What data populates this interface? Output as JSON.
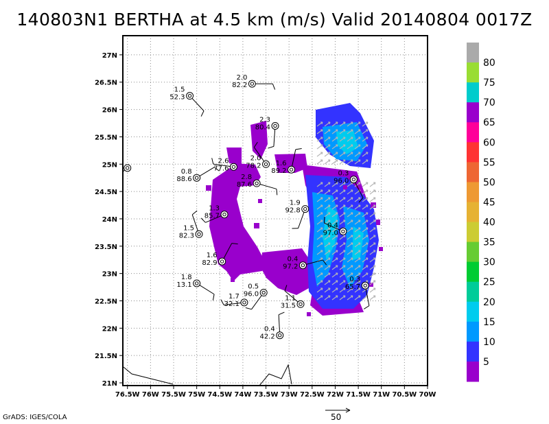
{
  "title": "140803N1 BERTHA at 4.5 km (m/s) Valid 20140804 0017Z",
  "credit": "GrADS: IGES/COLA",
  "vector_scale": {
    "label": "50",
    "value": 50
  },
  "colorbar": {
    "labels": [
      "5",
      "10",
      "15",
      "20",
      "25",
      "30",
      "35",
      "40",
      "45",
      "50",
      "55",
      "60",
      "65",
      "70",
      "75",
      "80"
    ],
    "colors": [
      "#9900cc",
      "#3333ff",
      "#0099ff",
      "#00ccee",
      "#00cc99",
      "#00cc33",
      "#66cc33",
      "#cccc33",
      "#e6b233",
      "#ee9933",
      "#ee6633",
      "#ff3333",
      "#ff0099",
      "#9900cc",
      "#00cccc",
      "#99dd33",
      "#aaaaaa"
    ]
  },
  "chart_data": {
    "type": "scatter",
    "title": "140803N1 BERTHA at 4.5 km (m/s) Valid 20140804 0017Z",
    "x_tick_labels": [
      "76.5W",
      "76W",
      "75.5W",
      "75W",
      "74.5W",
      "74W",
      "73.5W",
      "73W",
      "72.5W",
      "72W",
      "71.5W",
      "71W",
      "70.5W",
      "70W"
    ],
    "y_tick_labels": [
      "21N",
      "21.5N",
      "22N",
      "22.5N",
      "23N",
      "23.5N",
      "24N",
      "24.5N",
      "25N",
      "25.5N",
      "26N",
      "26.5N",
      "27N"
    ],
    "xlim": [
      -76.6,
      -70.0
    ],
    "ylim": [
      20.95,
      27.35
    ],
    "grid": true,
    "stations": [
      {
        "lon": -73.8,
        "lat": 26.47,
        "top": "2.0",
        "bottom": "82.2"
      },
      {
        "lon": -75.15,
        "lat": 26.25,
        "top": "1.5",
        "bottom": "52.3"
      },
      {
        "lon": -73.3,
        "lat": 25.7,
        "top": "2.3",
        "bottom": "80.4"
      },
      {
        "lon": -76.5,
        "lat": 24.93,
        "top": "",
        "bottom": ""
      },
      {
        "lon": -74.2,
        "lat": 24.95,
        "top": "2.6",
        "bottom": "77.6"
      },
      {
        "lon": -73.5,
        "lat": 25.0,
        "top": "2.0",
        "bottom": "78.2"
      },
      {
        "lon": -72.95,
        "lat": 24.9,
        "top": "1.6",
        "bottom": "89.2"
      },
      {
        "lon": -75.0,
        "lat": 24.75,
        "top": "0.8",
        "bottom": "88.6"
      },
      {
        "lon": -73.7,
        "lat": 24.65,
        "top": "2.8",
        "bottom": "87.6"
      },
      {
        "lon": -71.6,
        "lat": 24.72,
        "top": "0.3",
        "bottom": "96.0"
      },
      {
        "lon": -72.65,
        "lat": 24.18,
        "top": "1.9",
        "bottom": "92.8"
      },
      {
        "lon": -74.4,
        "lat": 24.08,
        "top": "1.3",
        "bottom": "85.7"
      },
      {
        "lon": -71.83,
        "lat": 23.77,
        "top": "0.4",
        "bottom": "97.0"
      },
      {
        "lon": -74.95,
        "lat": 23.72,
        "top": "1.5",
        "bottom": "82.3"
      },
      {
        "lon": -74.45,
        "lat": 23.22,
        "top": "1.6",
        "bottom": "82.9"
      },
      {
        "lon": -72.7,
        "lat": 23.15,
        "top": "0.4",
        "bottom": "97.2"
      },
      {
        "lon": -75.0,
        "lat": 22.82,
        "top": "1.8",
        "bottom": "13.1"
      },
      {
        "lon": -71.35,
        "lat": 22.78,
        "top": "0.3",
        "bottom": "65.7"
      },
      {
        "lon": -73.55,
        "lat": 22.65,
        "top": "0.5",
        "bottom": "96.0"
      },
      {
        "lon": -73.97,
        "lat": 22.47,
        "top": "1.7",
        "bottom": "32.1"
      },
      {
        "lon": -72.75,
        "lat": 22.44,
        "top": "1.1",
        "bottom": "31.5"
      },
      {
        "lon": -73.2,
        "lat": 21.87,
        "top": "0.4",
        "bottom": "42.2"
      }
    ]
  }
}
